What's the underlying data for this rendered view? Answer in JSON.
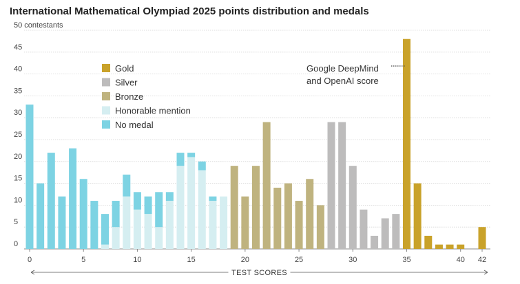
{
  "chart_data": {
    "type": "bar",
    "title": "International Mathematical Olympiad 2025 points distribution and medals",
    "y_unit_label": "50 contestants",
    "xlabel": "TEST SCORES",
    "ylim": [
      0,
      50
    ],
    "y_ticks": [
      0,
      5,
      10,
      15,
      20,
      25,
      30,
      35,
      40,
      45
    ],
    "x_ticks": [
      0,
      5,
      10,
      15,
      20,
      25,
      30,
      35,
      40,
      42
    ],
    "x_range": [
      0,
      42
    ],
    "colors": {
      "Gold": "#c9a22a",
      "Silver": "#bdbcbc",
      "Bronze": "#bfb37f",
      "Honorable mention": "#d5eef1",
      "No medal": "#7dd3e3"
    },
    "legend": [
      "Gold",
      "Silver",
      "Bronze",
      "Honorable mention",
      "No medal"
    ],
    "annotation": {
      "lines": [
        "Google DeepMind",
        "and OpenAI score"
      ],
      "x": 35
    },
    "bars": [
      {
        "score": 0,
        "segments": [
          {
            "cat": "No medal",
            "value": 33
          }
        ]
      },
      {
        "score": 1,
        "segments": [
          {
            "cat": "No medal",
            "value": 15
          }
        ]
      },
      {
        "score": 2,
        "segments": [
          {
            "cat": "No medal",
            "value": 22
          }
        ]
      },
      {
        "score": 3,
        "segments": [
          {
            "cat": "No medal",
            "value": 12
          }
        ]
      },
      {
        "score": 4,
        "segments": [
          {
            "cat": "No medal",
            "value": 23
          }
        ]
      },
      {
        "score": 5,
        "segments": [
          {
            "cat": "No medal",
            "value": 16
          }
        ]
      },
      {
        "score": 6,
        "segments": [
          {
            "cat": "No medal",
            "value": 11
          }
        ]
      },
      {
        "score": 7,
        "segments": [
          {
            "cat": "Honorable mention",
            "value": 1
          },
          {
            "cat": "No medal",
            "value": 7
          }
        ]
      },
      {
        "score": 8,
        "segments": [
          {
            "cat": "Honorable mention",
            "value": 5
          },
          {
            "cat": "No medal",
            "value": 6
          }
        ]
      },
      {
        "score": 9,
        "segments": [
          {
            "cat": "Honorable mention",
            "value": 12
          },
          {
            "cat": "No medal",
            "value": 5
          }
        ]
      },
      {
        "score": 10,
        "segments": [
          {
            "cat": "Honorable mention",
            "value": 9
          },
          {
            "cat": "No medal",
            "value": 4
          }
        ]
      },
      {
        "score": 11,
        "segments": [
          {
            "cat": "Honorable mention",
            "value": 8
          },
          {
            "cat": "No medal",
            "value": 4
          }
        ]
      },
      {
        "score": 12,
        "segments": [
          {
            "cat": "Honorable mention",
            "value": 5
          },
          {
            "cat": "No medal",
            "value": 8
          }
        ]
      },
      {
        "score": 13,
        "segments": [
          {
            "cat": "Honorable mention",
            "value": 11
          },
          {
            "cat": "No medal",
            "value": 2
          }
        ]
      },
      {
        "score": 14,
        "segments": [
          {
            "cat": "Honorable mention",
            "value": 19
          },
          {
            "cat": "No medal",
            "value": 3
          }
        ]
      },
      {
        "score": 15,
        "segments": [
          {
            "cat": "Honorable mention",
            "value": 21
          },
          {
            "cat": "No medal",
            "value": 1
          }
        ]
      },
      {
        "score": 16,
        "segments": [
          {
            "cat": "Honorable mention",
            "value": 18
          },
          {
            "cat": "No medal",
            "value": 2
          }
        ]
      },
      {
        "score": 17,
        "segments": [
          {
            "cat": "Honorable mention",
            "value": 11
          },
          {
            "cat": "No medal",
            "value": 1
          }
        ]
      },
      {
        "score": 18,
        "segments": [
          {
            "cat": "Honorable mention",
            "value": 12
          }
        ]
      },
      {
        "score": 19,
        "segments": [
          {
            "cat": "Bronze",
            "value": 19
          }
        ]
      },
      {
        "score": 20,
        "segments": [
          {
            "cat": "Bronze",
            "value": 12
          }
        ]
      },
      {
        "score": 21,
        "segments": [
          {
            "cat": "Bronze",
            "value": 19
          }
        ]
      },
      {
        "score": 22,
        "segments": [
          {
            "cat": "Bronze",
            "value": 29
          }
        ]
      },
      {
        "score": 23,
        "segments": [
          {
            "cat": "Bronze",
            "value": 14
          }
        ]
      },
      {
        "score": 24,
        "segments": [
          {
            "cat": "Bronze",
            "value": 15
          }
        ]
      },
      {
        "score": 25,
        "segments": [
          {
            "cat": "Bronze",
            "value": 11
          }
        ]
      },
      {
        "score": 26,
        "segments": [
          {
            "cat": "Bronze",
            "value": 16
          }
        ]
      },
      {
        "score": 27,
        "segments": [
          {
            "cat": "Bronze",
            "value": 10
          }
        ]
      },
      {
        "score": 28,
        "segments": [
          {
            "cat": "Silver",
            "value": 29
          }
        ]
      },
      {
        "score": 29,
        "segments": [
          {
            "cat": "Silver",
            "value": 29
          }
        ]
      },
      {
        "score": 30,
        "segments": [
          {
            "cat": "Silver",
            "value": 19
          }
        ]
      },
      {
        "score": 31,
        "segments": [
          {
            "cat": "Silver",
            "value": 9
          }
        ]
      },
      {
        "score": 32,
        "segments": [
          {
            "cat": "Silver",
            "value": 3
          }
        ]
      },
      {
        "score": 33,
        "segments": [
          {
            "cat": "Silver",
            "value": 7
          }
        ]
      },
      {
        "score": 34,
        "segments": [
          {
            "cat": "Silver",
            "value": 8
          }
        ]
      },
      {
        "score": 35,
        "segments": [
          {
            "cat": "Gold",
            "value": 48
          }
        ]
      },
      {
        "score": 36,
        "segments": [
          {
            "cat": "Gold",
            "value": 15
          }
        ]
      },
      {
        "score": 37,
        "segments": [
          {
            "cat": "Gold",
            "value": 3
          }
        ]
      },
      {
        "score": 38,
        "segments": [
          {
            "cat": "Gold",
            "value": 1
          }
        ]
      },
      {
        "score": 39,
        "segments": [
          {
            "cat": "Gold",
            "value": 1
          }
        ]
      },
      {
        "score": 40,
        "segments": [
          {
            "cat": "Gold",
            "value": 1
          }
        ]
      },
      {
        "score": 42,
        "segments": [
          {
            "cat": "Gold",
            "value": 5
          }
        ]
      }
    ]
  }
}
